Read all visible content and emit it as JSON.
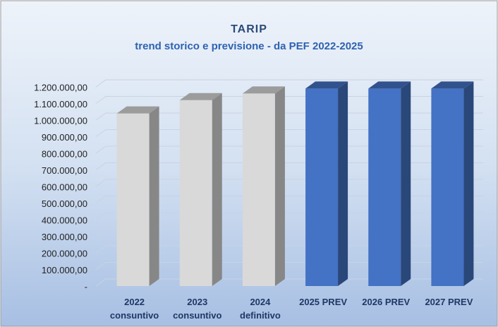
{
  "chart_data": {
    "type": "bar3d",
    "title": "TARIP",
    "subtitle": "trend storico e previsione - da PEF 2022-2025",
    "categories": [
      "2022 consuntivo",
      "2023 consuntivo",
      "2024 definitivo",
      "2025 PREV",
      "2026 PREV",
      "2027 PREV"
    ],
    "values": [
      1040000,
      1120000,
      1160000,
      1190000,
      1190000,
      1190000
    ],
    "colors": [
      "#d9d9d9",
      "#d9d9d9",
      "#d9d9d9",
      "#4472c4",
      "#4472c4",
      "#4472c4"
    ],
    "ylim": [
      0,
      1200000
    ],
    "yticks": [
      {
        "value": 0,
        "label": "-"
      },
      {
        "value": 100000,
        "label": "100.000,00"
      },
      {
        "value": 200000,
        "label": "200.000,00"
      },
      {
        "value": 300000,
        "label": "300.000,00"
      },
      {
        "value": 400000,
        "label": "400.000,00"
      },
      {
        "value": 500000,
        "label": "500.000,00"
      },
      {
        "value": 600000,
        "label": "600.000,00"
      },
      {
        "value": 700000,
        "label": "700.000,00"
      },
      {
        "value": 800000,
        "label": "800.000,00"
      },
      {
        "value": 900000,
        "label": "900.000,00"
      },
      {
        "value": 1000000,
        "label": "1.000.000,00"
      },
      {
        "value": 1100000,
        "label": "1.100.000,00"
      },
      {
        "value": 1200000,
        "label": "1.200.000,00"
      }
    ],
    "grid": true
  }
}
